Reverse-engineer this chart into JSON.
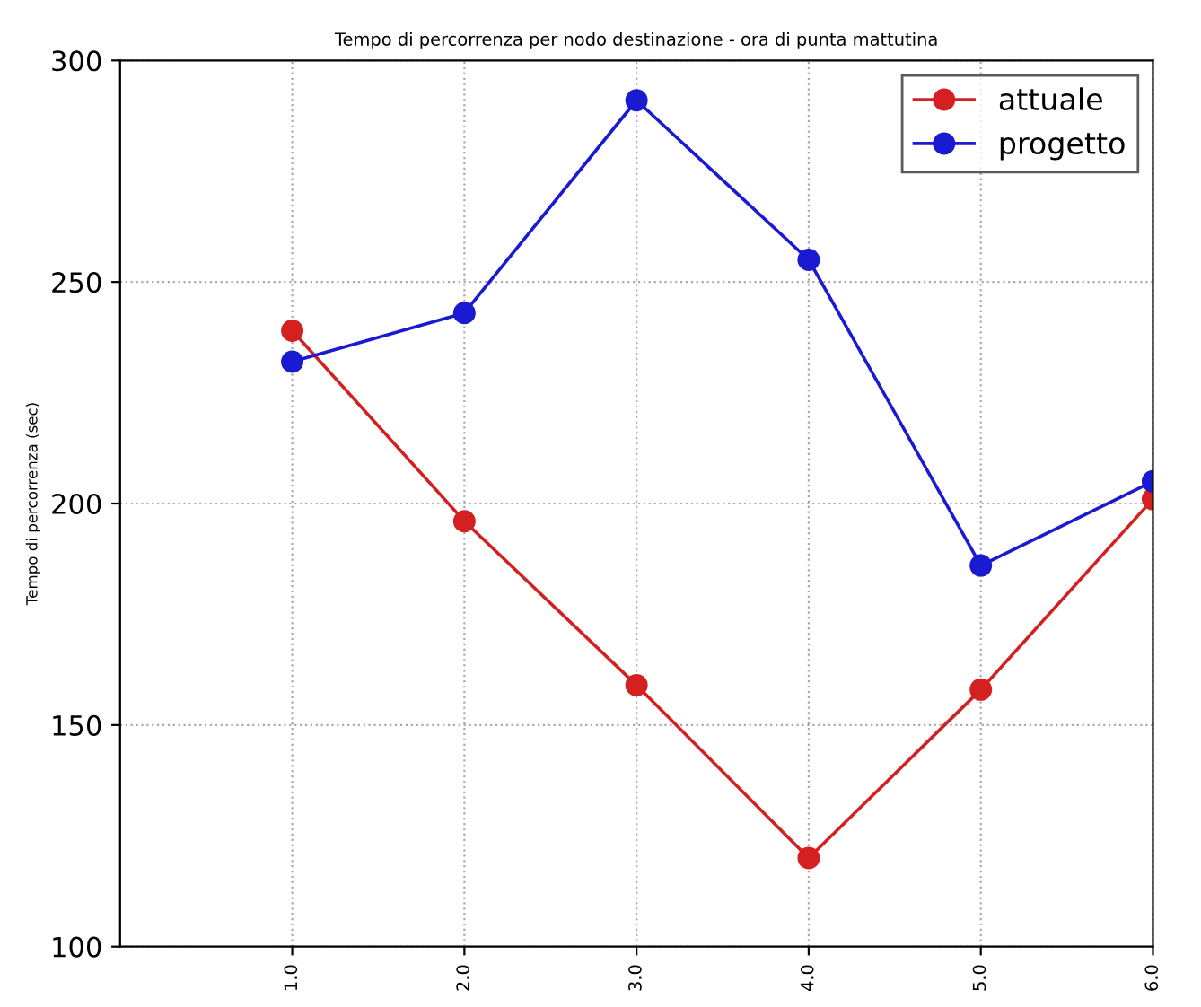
{
  "chart_data": {
    "type": "line",
    "title": "Tempo di percorrenza per nodo destinazione - ora di punta mattutina",
    "ylabel": "Tempo di percorrenza (sec)",
    "x": [
      1,
      2,
      3,
      4,
      5,
      6
    ],
    "series": [
      {
        "name": "attuale",
        "color": "#d42020",
        "values": [
          239,
          196,
          159,
          120,
          158,
          201
        ]
      },
      {
        "name": "progetto",
        "color": "#1a1ad0",
        "values": [
          232,
          243,
          291,
          255,
          186,
          205
        ]
      }
    ],
    "xlim": [
      0,
      6
    ],
    "xticks": [
      {
        "value": 1,
        "label": "1.0"
      },
      {
        "value": 2,
        "label": "2.0"
      },
      {
        "value": 3,
        "label": "3.0"
      },
      {
        "value": 4,
        "label": "4.0"
      },
      {
        "value": 5,
        "label": "5.0"
      },
      {
        "value": 6,
        "label": "6.0"
      }
    ],
    "ylim": [
      100,
      300
    ],
    "yticks": [
      100,
      150,
      200,
      250,
      300
    ],
    "grid": true,
    "legend": "top right",
    "marker": "circle",
    "line_style": "solid"
  }
}
